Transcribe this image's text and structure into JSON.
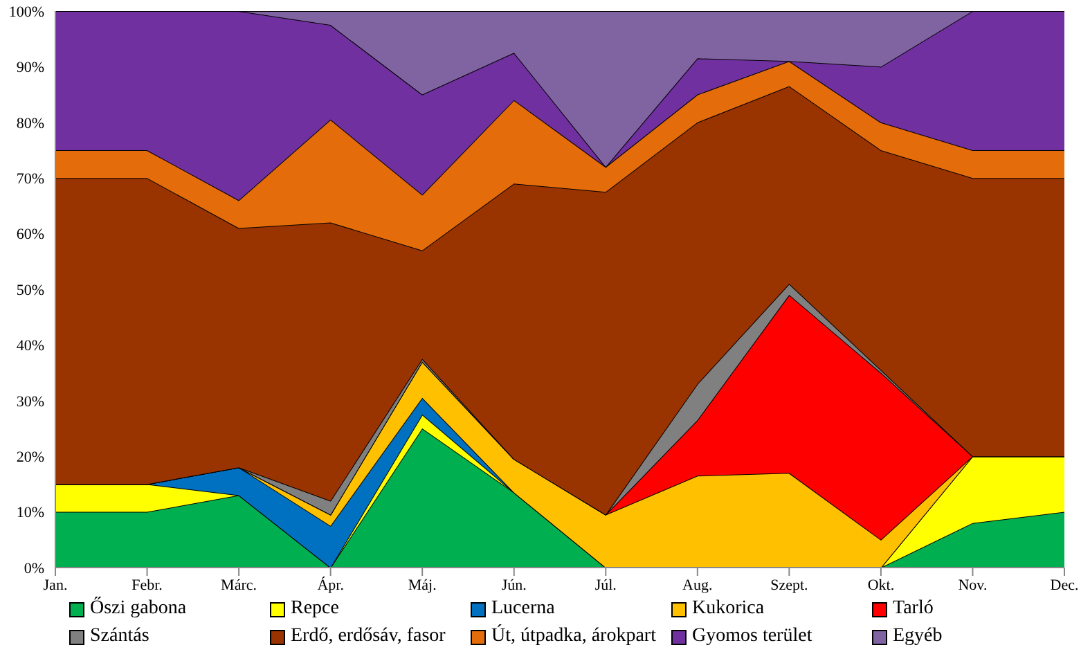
{
  "chart_data": {
    "type": "area",
    "stacked": true,
    "categories": [
      "Jan.",
      "Febr.",
      "Márc.",
      "Ápr.",
      "Máj.",
      "Jún.",
      "Júl.",
      "Aug.",
      "Szept.",
      "Okt.",
      "Nov.",
      "Dec."
    ],
    "ylim": [
      0,
      100
    ],
    "yticks": [
      {
        "value": 0,
        "label": "0%"
      },
      {
        "value": 10,
        "label": "10%"
      },
      {
        "value": 20,
        "label": "20%"
      },
      {
        "value": 30,
        "label": "30%"
      },
      {
        "value": 40,
        "label": "40%"
      },
      {
        "value": 50,
        "label": "50%"
      },
      {
        "value": 60,
        "label": "60%"
      },
      {
        "value": 70,
        "label": "70%"
      },
      {
        "value": 80,
        "label": "80%"
      },
      {
        "value": 90,
        "label": "90%"
      },
      {
        "value": 100,
        "label": "100%"
      }
    ],
    "grid": false,
    "legend": "bottom",
    "series": [
      {
        "name": "Őszi gabona",
        "color": "#00b050",
        "values": [
          10,
          10,
          13,
          0,
          25,
          13.5,
          0,
          0,
          0,
          0,
          8,
          10
        ]
      },
      {
        "name": "Repce",
        "color": "#ffff00",
        "values": [
          5,
          5,
          0,
          0,
          2.5,
          0,
          0,
          0,
          0,
          0,
          12,
          10
        ]
      },
      {
        "name": "Lucerna",
        "color": "#0070c0",
        "values": [
          0,
          0,
          5,
          7.5,
          3,
          0,
          0,
          0,
          0,
          0,
          0,
          0
        ]
      },
      {
        "name": "Kukorica",
        "color": "#ffc000",
        "values": [
          0,
          0,
          0,
          2,
          6.5,
          6,
          9.5,
          16.5,
          17,
          5,
          0,
          0
        ]
      },
      {
        "name": "Tarló",
        "color": "#ff0000",
        "values": [
          0,
          0,
          0,
          0,
          0,
          0,
          0,
          10,
          32,
          30,
          0,
          0
        ]
      },
      {
        "name": "Szántás",
        "color": "#808080",
        "values": [
          0,
          0,
          0,
          2.5,
          0.5,
          0,
          0,
          6.5,
          2,
          0.5,
          0,
          0
        ]
      },
      {
        "name": "Erdő, erdősáv, fasor",
        "color": "#993300",
        "values": [
          55,
          55,
          43,
          50,
          19.5,
          49.5,
          58,
          47,
          35.5,
          39.5,
          50,
          50
        ]
      },
      {
        "name": "Út, útpadka, árokpart",
        "color": "#e46c0a",
        "values": [
          5,
          5,
          5,
          18.5,
          10,
          15,
          4.5,
          5,
          4.5,
          5,
          5,
          5
        ]
      },
      {
        "name": "Gyomos terület",
        "color": "#7030a0",
        "values": [
          25,
          25,
          34,
          17,
          18,
          8.5,
          0,
          6.5,
          0,
          10,
          25,
          25
        ]
      },
      {
        "name": "Egyéb",
        "color": "#8064a2",
        "values": [
          0,
          0,
          0,
          2.5,
          15,
          7.5,
          28,
          8.5,
          9,
          10,
          0,
          0
        ]
      }
    ]
  }
}
